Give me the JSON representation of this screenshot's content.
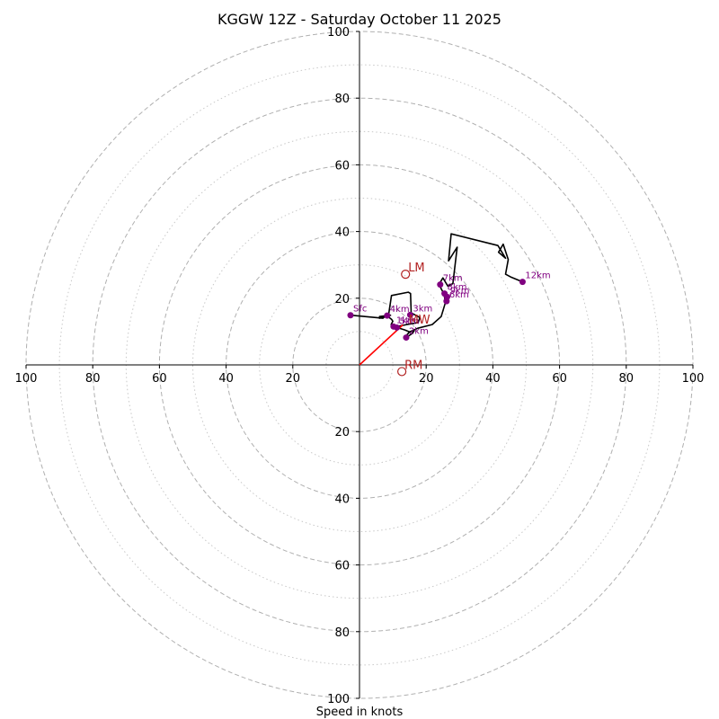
{
  "chart_data": {
    "type": "scatter",
    "subtype": "hodograph",
    "title": "KGGW 12Z - Saturday October 11 2025",
    "xlabel": "Speed in knots",
    "xlim": [
      -100,
      100
    ],
    "ylim": [
      -100,
      100
    ],
    "rings_major": [
      20,
      40,
      60,
      80,
      100
    ],
    "rings_minor": [
      10,
      30,
      50,
      70,
      90
    ],
    "x_ticks": [
      {
        "value": -100,
        "label": "100"
      },
      {
        "value": -80,
        "label": "80"
      },
      {
        "value": -60,
        "label": "60"
      },
      {
        "value": -40,
        "label": "40"
      },
      {
        "value": -20,
        "label": "20"
      },
      {
        "value": 20,
        "label": "20"
      },
      {
        "value": 40,
        "label": "40"
      },
      {
        "value": 60,
        "label": "60"
      },
      {
        "value": 80,
        "label": "80"
      },
      {
        "value": 100,
        "label": "100"
      }
    ],
    "y_ticks": [
      {
        "value": 100,
        "label": "100"
      },
      {
        "value": 80,
        "label": "80"
      },
      {
        "value": 60,
        "label": "60"
      },
      {
        "value": 40,
        "label": "40"
      },
      {
        "value": 20,
        "label": "20"
      },
      {
        "value": -20,
        "label": "20"
      },
      {
        "value": -40,
        "label": "40"
      },
      {
        "value": -60,
        "label": "60"
      },
      {
        "value": -80,
        "label": "80"
      },
      {
        "value": -100,
        "label": "100"
      }
    ],
    "hodograph": {
      "color": "#000000",
      "points": [
        [
          -2.7,
          14.9
        ],
        [
          7.0,
          14.0
        ],
        [
          8.0,
          14.9
        ],
        [
          9.6,
          13.7
        ],
        [
          10.0,
          13.1
        ],
        [
          9.5,
          12.1
        ],
        [
          11.0,
          11.3
        ],
        [
          13.5,
          10.5
        ],
        [
          15.0,
          9.9
        ],
        [
          16.0,
          10.1
        ],
        [
          16.4,
          10.2
        ],
        [
          15.8,
          9.4
        ],
        [
          14.9,
          8.8
        ],
        [
          13.9,
          8.3
        ],
        [
          14.0,
          8.7
        ],
        [
          15.0,
          9.9
        ],
        [
          17.5,
          11.0
        ],
        [
          21.8,
          12.1
        ],
        [
          24.5,
          14.5
        ],
        [
          25.8,
          18.8
        ],
        [
          25.3,
          21.3
        ],
        [
          24.1,
          23.6
        ],
        [
          24.0,
          24.4
        ],
        [
          25.0,
          26.1
        ],
        [
          26.5,
          23.6
        ],
        [
          28.0,
          24.4
        ],
        [
          29.3,
          35.3
        ],
        [
          26.7,
          31.2
        ],
        [
          27.5,
          39.3
        ],
        [
          41.5,
          35.8
        ],
        [
          43.8,
          32.0
        ],
        [
          41.7,
          33.8
        ],
        [
          43.1,
          36.2
        ],
        [
          44.6,
          31.6
        ],
        [
          43.8,
          27.2
        ],
        [
          45.3,
          26.4
        ],
        [
          48.9,
          24.9
        ]
      ],
      "extra_segment": [
        [
          9.5,
          14.9
        ],
        [
          6.0,
          14.5
        ],
        [
          6.0,
          14.0
        ],
        [
          8.7,
          14.9
        ],
        [
          9.6,
          20.8
        ],
        [
          14.6,
          21.8
        ],
        [
          15.3,
          21.4
        ],
        [
          15.5,
          15.6
        ],
        [
          18.1,
          14.2
        ],
        [
          17.6,
          12.7
        ],
        [
          14.2,
          12.1
        ],
        [
          11.7,
          11.6
        ],
        [
          10.2,
          11.5
        ]
      ]
    },
    "height_markers": [
      {
        "label": "Sfc",
        "u": -2.7,
        "v": 14.9
      },
      {
        "label": "1km",
        "u": 10.2,
        "v": 11.5
      },
      {
        "label": "2km",
        "u": 14.0,
        "v": 8.2
      },
      {
        "label": "3km",
        "u": 15.2,
        "v": 15.0
      },
      {
        "label": "4km",
        "u": 8.3,
        "v": 14.8
      },
      {
        "label": "5km",
        "u": 11.2,
        "v": 11.2
      },
      {
        "label": "6km",
        "u": 26.1,
        "v": 19.1
      },
      {
        "label": "7km",
        "u": 24.2,
        "v": 24.1
      },
      {
        "label": "8km",
        "u": 25.5,
        "v": 21.4
      },
      {
        "label": "9km",
        "u": 26.3,
        "v": 20.4
      },
      {
        "label": "12km",
        "u": 48.9,
        "v": 24.9
      }
    ],
    "storm_motion": [
      {
        "label": "LM",
        "u": 13.8,
        "v": 27.2
      },
      {
        "label": "RM",
        "u": 12.7,
        "v": -2.0
      },
      {
        "label": "MW",
        "u": 13.9,
        "v": 13.0
      }
    ],
    "shear_vector": {
      "color": "#ff0000",
      "u": 13.0,
      "v": 12.0
    },
    "colors": {
      "grid": "#b0b0b0",
      "markers": "#800080",
      "storm": "#b22222"
    }
  }
}
